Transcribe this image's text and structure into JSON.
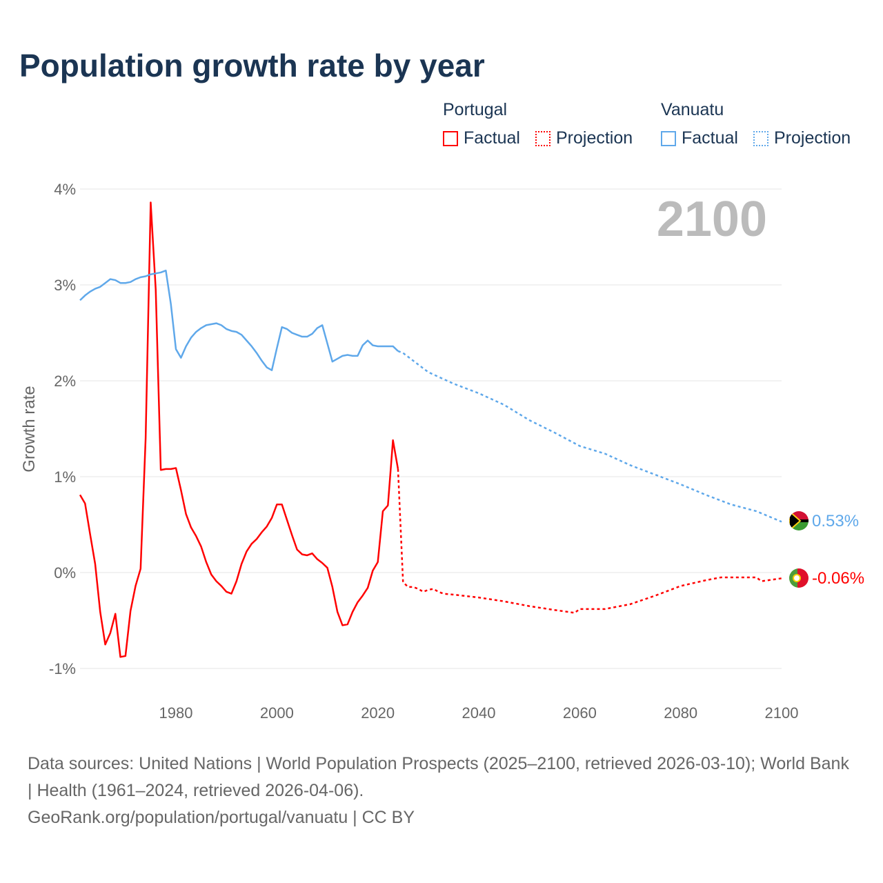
{
  "title": "Population growth rate by year",
  "legend": {
    "portugal": {
      "name": "Portugal",
      "factual": "Factual",
      "projection": "Projection"
    },
    "vanuatu": {
      "name": "Vanuatu",
      "factual": "Factual",
      "projection": "Projection"
    }
  },
  "footer": {
    "sources": "Data sources: United Nations | World Population Prospects (2025–2100, retrieved 2026-03-10); World Bank | Health (1961–2024, retrieved 2026-04-06).",
    "link": "GeoRank.org/population/portugal/vanuatu | CC BY"
  },
  "chart_data": {
    "type": "line",
    "title": "Population growth rate by year",
    "year_label": "2100",
    "ylabel": "Growth rate",
    "xlabel": "",
    "xlim": [
      1961,
      2100
    ],
    "ylim": [
      -1,
      4
    ],
    "xticks": [
      1980,
      2000,
      2020,
      2040,
      2060,
      2080,
      2100
    ],
    "yticks": [
      -1,
      0,
      1,
      2,
      3,
      4
    ],
    "ytick_labels": [
      "-1%",
      "0%",
      "1%",
      "2%",
      "3%",
      "4%"
    ],
    "grid": true,
    "legend_position": "top-right",
    "series": [
      {
        "name": "Portugal",
        "color": "#ff0000",
        "end_label": "-0.06%",
        "factual": {
          "x": [
            1961,
            1962,
            1963,
            1964,
            1965,
            1966,
            1967,
            1968,
            1969,
            1970,
            1971,
            1972,
            1973,
            1974,
            1975,
            1976,
            1977,
            1978,
            1979,
            1980,
            1981,
            1982,
            1983,
            1984,
            1985,
            1986,
            1987,
            1988,
            1989,
            1990,
            1991,
            1992,
            1993,
            1994,
            1995,
            1996,
            1997,
            1998,
            1999,
            2000,
            2001,
            2002,
            2003,
            2004,
            2005,
            2006,
            2007,
            2008,
            2009,
            2010,
            2011,
            2012,
            2013,
            2014,
            2015,
            2016,
            2017,
            2018,
            2019,
            2020,
            2021,
            2022,
            2023,
            2024
          ],
          "y": [
            0.81,
            0.72,
            0.4,
            0.09,
            -0.41,
            -0.75,
            -0.63,
            -0.43,
            -0.88,
            -0.87,
            -0.4,
            -0.14,
            0.04,
            1.4,
            3.86,
            2.95,
            1.07,
            1.08,
            1.08,
            1.09,
            0.86,
            0.61,
            0.47,
            0.38,
            0.27,
            0.11,
            -0.02,
            -0.09,
            -0.14,
            -0.2,
            -0.22,
            -0.09,
            0.09,
            0.22,
            0.3,
            0.35,
            0.42,
            0.48,
            0.57,
            0.71,
            0.71,
            0.55,
            0.39,
            0.24,
            0.19,
            0.18,
            0.2,
            0.14,
            0.1,
            0.05,
            -0.15,
            -0.41,
            -0.55,
            -0.54,
            -0.41,
            -0.31,
            -0.24,
            -0.16,
            0.02,
            0.11,
            0.64,
            0.7,
            1.38,
            1.08
          ]
        },
        "projection": {
          "x": [
            2024,
            2025,
            2026,
            2027,
            2028,
            2029,
            2030,
            2031,
            2032,
            2033,
            2035,
            2040,
            2045,
            2050,
            2055,
            2059,
            2060,
            2065,
            2070,
            2075,
            2080,
            2085,
            2088,
            2090,
            2095,
            2096,
            2100
          ],
          "y": [
            1.08,
            -0.1,
            -0.15,
            -0.15,
            -0.17,
            -0.2,
            -0.18,
            -0.17,
            -0.2,
            -0.22,
            -0.23,
            -0.26,
            -0.3,
            -0.35,
            -0.39,
            -0.42,
            -0.38,
            -0.38,
            -0.33,
            -0.24,
            -0.14,
            -0.08,
            -0.05,
            -0.05,
            -0.05,
            -0.09,
            -0.06
          ]
        }
      },
      {
        "name": "Vanuatu",
        "color": "#5fa8ea",
        "end_label": "0.53%",
        "factual": {
          "x": [
            1961,
            1962,
            1963,
            1964,
            1965,
            1966,
            1967,
            1968,
            1969,
            1970,
            1971,
            1972,
            1973,
            1974,
            1975,
            1976,
            1977,
            1978,
            1979,
            1980,
            1981,
            1982,
            1983,
            1984,
            1985,
            1986,
            1987,
            1988,
            1989,
            1990,
            1991,
            1992,
            1993,
            1994,
            1995,
            1996,
            1997,
            1998,
            1999,
            2000,
            2001,
            2002,
            2003,
            2004,
            2005,
            2006,
            2007,
            2008,
            2009,
            2010,
            2011,
            2012,
            2013,
            2014,
            2015,
            2016,
            2017,
            2018,
            2019,
            2020,
            2021,
            2022,
            2023,
            2024
          ],
          "y": [
            2.84,
            2.89,
            2.93,
            2.96,
            2.98,
            3.02,
            3.06,
            3.05,
            3.02,
            3.02,
            3.03,
            3.06,
            3.08,
            3.09,
            3.11,
            3.12,
            3.13,
            3.15,
            2.8,
            2.33,
            2.24,
            2.36,
            2.45,
            2.51,
            2.55,
            2.58,
            2.59,
            2.6,
            2.58,
            2.54,
            2.52,
            2.51,
            2.48,
            2.42,
            2.36,
            2.29,
            2.21,
            2.14,
            2.11,
            2.34,
            2.56,
            2.54,
            2.5,
            2.48,
            2.46,
            2.46,
            2.49,
            2.55,
            2.58,
            2.39,
            2.2,
            2.23,
            2.26,
            2.27,
            2.26,
            2.26,
            2.37,
            2.42,
            2.37,
            2.36,
            2.36,
            2.36,
            2.36,
            2.31
          ]
        },
        "projection": {
          "x": [
            2024,
            2025,
            2030,
            2035,
            2040,
            2045,
            2050,
            2055,
            2060,
            2065,
            2070,
            2075,
            2080,
            2085,
            2090,
            2095,
            2100
          ],
          "y": [
            2.31,
            2.29,
            2.09,
            1.97,
            1.87,
            1.75,
            1.59,
            1.46,
            1.32,
            1.24,
            1.12,
            1.02,
            0.92,
            0.81,
            0.71,
            0.64,
            0.53
          ]
        }
      }
    ]
  }
}
